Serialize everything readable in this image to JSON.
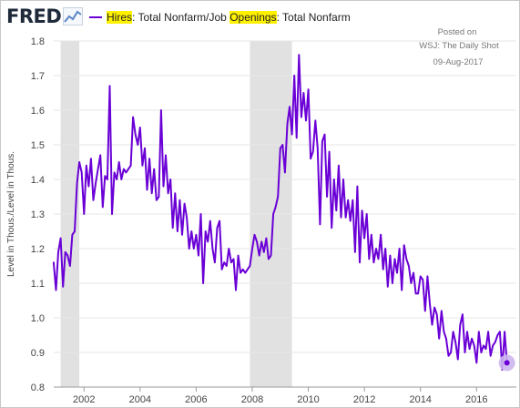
{
  "header": {
    "logo_text": "FRED",
    "legend": {
      "series_a": "Hires",
      "sep1": ": Total Nonfarm/Job ",
      "series_b": "Openings",
      "sep2": ": Total Nonfarm"
    }
  },
  "annotation": {
    "line1": "Posted on",
    "line2": "WSJ: The Daily Shot",
    "line3": "09-Aug-2017"
  },
  "chart_data": {
    "type": "line",
    "title": "",
    "ylabel": "Level in Thous./Level in Thous.",
    "xlabel": "",
    "ylim": [
      0.8,
      1.8
    ],
    "xlim": [
      2000.92,
      2017.42
    ],
    "yticks": [
      "0.8",
      "0.9",
      "1.0",
      "1.1",
      "1.2",
      "1.3",
      "1.4",
      "1.5",
      "1.6",
      "1.7",
      "1.8"
    ],
    "xticks": [
      "2002",
      "2004",
      "2006",
      "2008",
      "2010",
      "2012",
      "2014",
      "2016"
    ],
    "grid": true,
    "line_color": "#6a00d6",
    "recession_color": "#e1e1e1",
    "recessions": [
      {
        "start": "2001-03",
        "end": "2001-11"
      },
      {
        "start": "2007-12",
        "end": "2009-06"
      }
    ],
    "last_point_marker": true,
    "series": [
      {
        "start": "2000-12",
        "frequency": "monthly",
        "values": [
          1.16,
          1.08,
          1.19,
          1.23,
          1.09,
          1.19,
          1.18,
          1.15,
          1.24,
          1.25,
          1.39,
          1.45,
          1.42,
          1.3,
          1.44,
          1.38,
          1.46,
          1.34,
          1.39,
          1.43,
          1.47,
          1.32,
          1.41,
          1.4,
          1.67,
          1.3,
          1.42,
          1.4,
          1.45,
          1.4,
          1.43,
          1.42,
          1.43,
          1.44,
          1.58,
          1.53,
          1.5,
          1.55,
          1.44,
          1.49,
          1.37,
          1.46,
          1.36,
          1.43,
          1.34,
          1.35,
          1.6,
          1.38,
          1.47,
          1.36,
          1.4,
          1.26,
          1.36,
          1.25,
          1.34,
          1.24,
          1.33,
          1.29,
          1.2,
          1.25,
          1.2,
          1.24,
          1.18,
          1.3,
          1.1,
          1.25,
          1.22,
          1.28,
          1.2,
          1.16,
          1.26,
          1.28,
          1.14,
          1.16,
          1.15,
          1.2,
          1.16,
          1.17,
          1.08,
          1.18,
          1.13,
          1.14,
          1.13,
          1.14,
          1.15,
          1.2,
          1.24,
          1.22,
          1.18,
          1.22,
          1.19,
          1.23,
          1.17,
          1.18,
          1.3,
          1.32,
          1.35,
          1.49,
          1.5,
          1.42,
          1.56,
          1.61,
          1.53,
          1.7,
          1.52,
          1.76,
          1.58,
          1.65,
          1.57,
          1.66,
          1.46,
          1.48,
          1.57,
          1.49,
          1.27,
          1.51,
          1.53,
          1.35,
          1.48,
          1.26,
          1.4,
          1.31,
          1.44,
          1.29,
          1.4,
          1.29,
          1.34,
          1.28,
          1.34,
          1.19,
          1.38,
          1.16,
          1.31,
          1.23,
          1.3,
          1.17,
          1.24,
          1.16,
          1.2,
          1.17,
          1.24,
          1.14,
          1.2,
          1.09,
          1.18,
          1.1,
          1.17,
          1.13,
          1.2,
          1.08,
          1.21,
          1.17,
          1.15,
          1.1,
          1.13,
          1.07,
          1.07,
          1.12,
          1.11,
          1.02,
          1.12,
          1.04,
          0.98,
          1.03,
          1.01,
          0.94,
          1.02,
          0.96,
          0.94,
          0.89,
          0.9,
          0.96,
          0.93,
          0.88,
          0.98,
          1.01,
          0.9,
          0.96,
          0.91,
          0.94,
          0.92,
          0.87,
          0.96,
          0.9,
          0.92,
          0.91,
          0.96,
          0.89,
          0.92,
          0.93,
          0.95,
          0.96,
          0.85,
          0.96,
          0.87
        ]
      }
    ]
  }
}
